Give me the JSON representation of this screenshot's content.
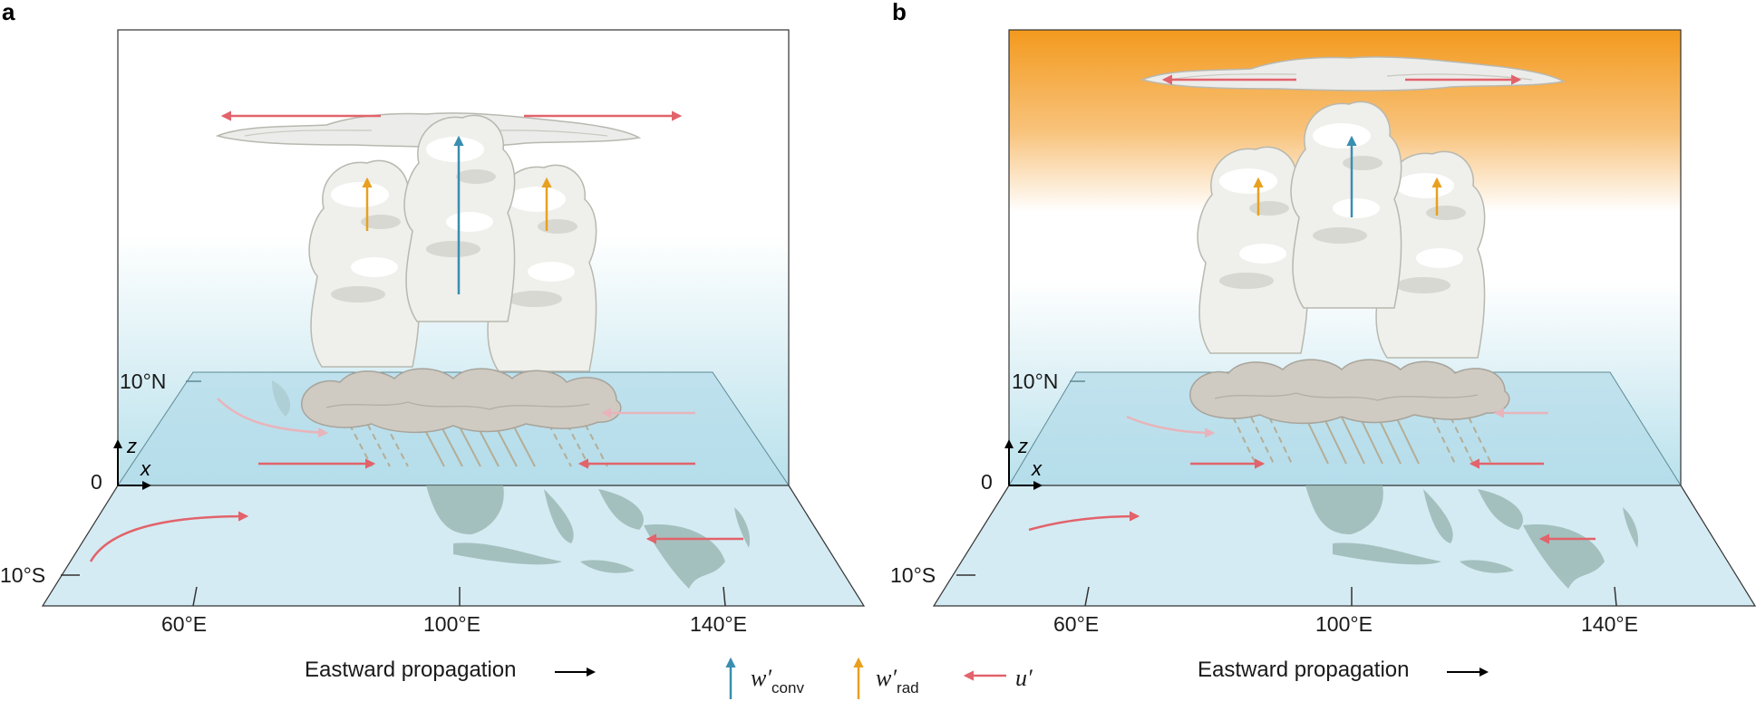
{
  "panels": [
    {
      "letter": "a",
      "z_label": "z",
      "x_label": "x",
      "zero_label": "0",
      "lat_north": "10°N",
      "lat_south": "10°S",
      "lon_ticks": [
        "60°E",
        "100°E",
        "140°E"
      ],
      "caption": "Eastward propagation",
      "upper_sky": "light-blue"
    },
    {
      "letter": "b",
      "z_label": "z",
      "x_label": "x",
      "zero_label": "0",
      "lat_north": "10°N",
      "lat_south": "10°S",
      "lon_ticks": [
        "60°E",
        "100°E",
        "140°E"
      ],
      "caption": "Eastward propagation",
      "upper_sky": "orange"
    }
  ],
  "legend": {
    "items": [
      {
        "symbol": "w′",
        "subscript": "conv",
        "color": "#3a8eb0"
      },
      {
        "symbol": "w′",
        "subscript": "rad",
        "color": "#e8a020"
      },
      {
        "symbol": "u′",
        "subscript": "",
        "color": "#e2636b"
      }
    ]
  },
  "colors": {
    "conv_arrow": "#3a8eb0",
    "rad_arrow": "#e8a020",
    "wind_arrow": "#e2636b",
    "sky_blue": "#b9e1ec",
    "sky_orange": "#f39a1e",
    "land": "#9bb9b5",
    "ocean": "#d5ebf3"
  }
}
